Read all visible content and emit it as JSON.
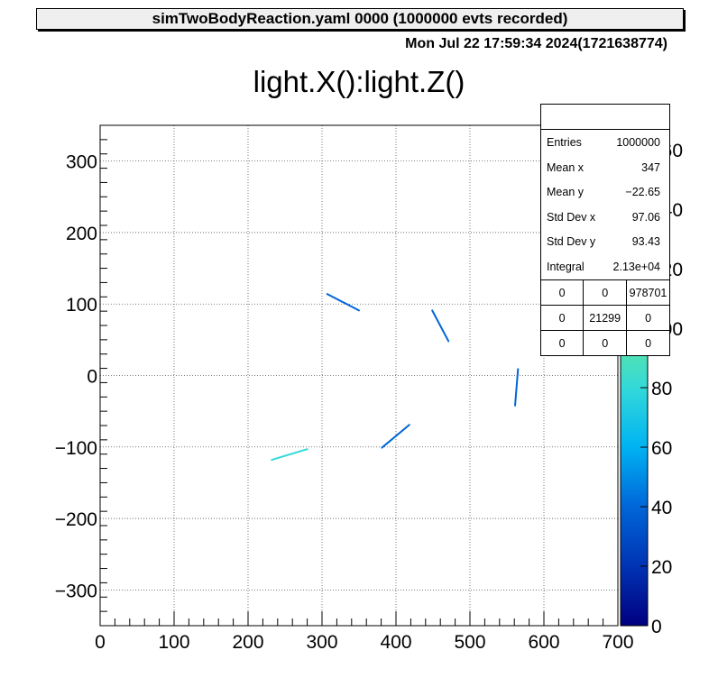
{
  "header": {
    "file_title": "simTwoBodyReaction.yaml  0000 (1000000 evts recorded)"
  },
  "timestamp": "Mon Jul 22 17:59:34 2024(1721638774)",
  "stats": {
    "title": "",
    "rows": [
      {
        "label": "Entries",
        "value": "1000000"
      },
      {
        "label": "Mean x",
        "value": "347"
      },
      {
        "label": "Mean y",
        "value": "−22.65"
      },
      {
        "label": "Std Dev x",
        "value": "97.06"
      },
      {
        "label": "Std Dev y",
        "value": "93.43"
      },
      {
        "label": "Integral",
        "value": "2.13e+04"
      }
    ],
    "grid": [
      [
        "0",
        "0",
        "978701"
      ],
      [
        "0",
        "21299",
        "0"
      ],
      [
        "0",
        "0",
        "0"
      ]
    ]
  },
  "colors": {
    "frame": "#000000",
    "grid": "#555555"
  },
  "chart_data": {
    "type": "heatmap",
    "title": "light.X():light.Z()",
    "xlabel": "",
    "ylabel": "",
    "xlim": [
      0,
      700
    ],
    "ylim": [
      -350,
      350
    ],
    "xticks": [
      0,
      100,
      200,
      300,
      400,
      500,
      600,
      700
    ],
    "yticks": [
      -300,
      -200,
      -100,
      0,
      100,
      200,
      300
    ],
    "grid": true,
    "colorbar": {
      "range": [
        0,
        160
      ],
      "ticks": [
        0,
        20,
        40,
        60,
        80,
        100,
        120,
        140,
        160
      ],
      "palette": [
        "#000080",
        "#0033b3",
        "#0066d9",
        "#00b3f2",
        "#33d9d9",
        "#66e699",
        "#99e64d",
        "#e6c833",
        "#ffff66"
      ]
    },
    "segments": [
      {
        "x1": 232,
        "y1": -118,
        "x2": 280,
        "y2": -103,
        "level": 75
      },
      {
        "x1": 307,
        "y1": 114,
        "x2": 350,
        "y2": 91,
        "level": 30
      },
      {
        "x1": 381,
        "y1": -101,
        "x2": 418,
        "y2": -69,
        "level": 35
      },
      {
        "x1": 449,
        "y1": 91,
        "x2": 471,
        "y2": 48,
        "level": 30
      },
      {
        "x1": 561,
        "y1": -42,
        "x2": 565,
        "y2": 9,
        "level": 30
      }
    ]
  }
}
